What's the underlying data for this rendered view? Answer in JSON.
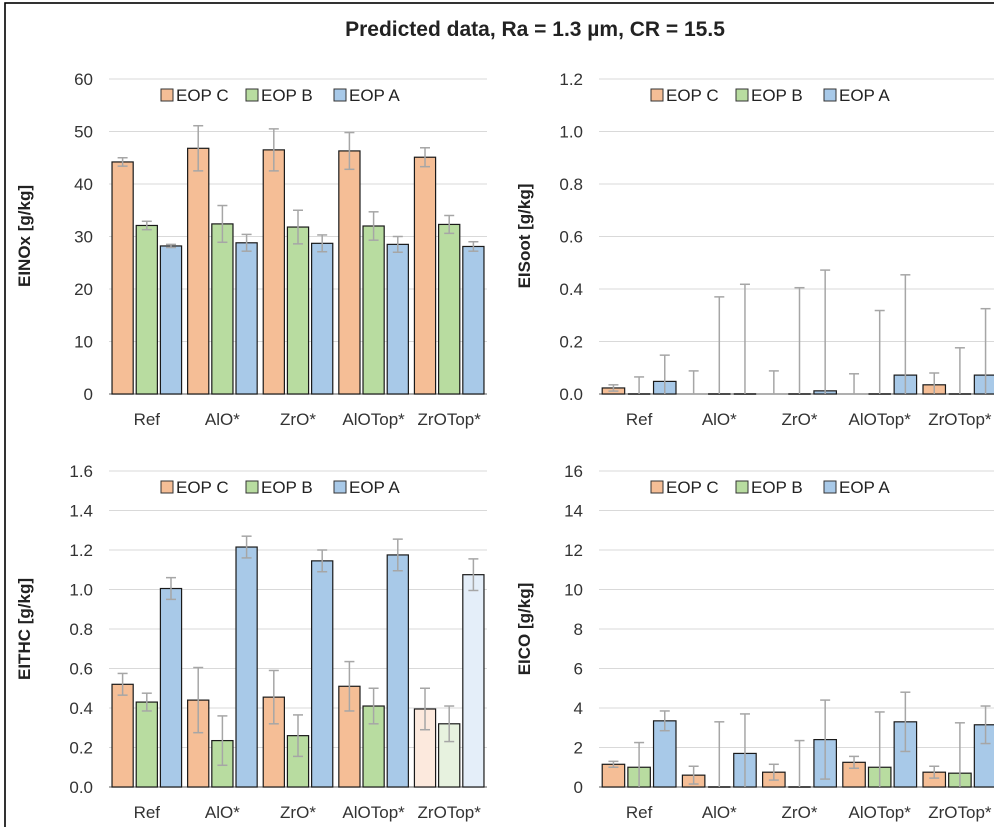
{
  "title": "Predicted data, Ra = 1.3 µm, CR = 15.5",
  "colors": {
    "EOP C": "#f5be96",
    "EOP B": "#b8dca0",
    "EOP A": "#a8c9e8",
    "EOP C faded": "#fce9dd",
    "EOP B faded": "#e7f2df",
    "EOP A faded": "#e4eef9",
    "grid": "#d9d9d9",
    "errorbar": "#a6a6a6"
  },
  "chart_data": [
    {
      "id": "nox",
      "type": "bar",
      "ylabel": "EINOx [g/kg]",
      "categories": [
        "Ref",
        "AlO*",
        "ZrO*",
        "AlOTop*",
        "ZrOTop*"
      ],
      "ylim": [
        0,
        60
      ],
      "yticks": [
        "0",
        "10",
        "20",
        "30",
        "40",
        "50",
        "60"
      ],
      "grid": true,
      "legend": "top",
      "faded_categories": [],
      "series": [
        {
          "name": "EOP C",
          "values": [
            44.2,
            46.8,
            46.5,
            46.3,
            45.1
          ],
          "err": [
            0.8,
            4.3,
            4.0,
            3.5,
            1.8
          ]
        },
        {
          "name": "EOP B",
          "values": [
            32.1,
            32.4,
            31.8,
            32.0,
            32.3
          ],
          "err": [
            0.8,
            3.5,
            3.2,
            2.7,
            1.7
          ]
        },
        {
          "name": "EOP A",
          "values": [
            28.2,
            28.8,
            28.7,
            28.5,
            28.1
          ],
          "err": [
            0.3,
            1.6,
            1.6,
            1.5,
            0.9
          ]
        }
      ]
    },
    {
      "id": "soot",
      "type": "bar",
      "ylabel": "EISoot [g/kg]",
      "categories": [
        "Ref",
        "AlO*",
        "ZrO*",
        "AlOTop*",
        "ZrOTop*"
      ],
      "ylim": [
        0,
        1.2
      ],
      "yticks": [
        "0.0",
        "0.2",
        "0.4",
        "0.6",
        "0.8",
        "1.0",
        "1.2"
      ],
      "grid": true,
      "legend": "top",
      "faded_categories": [],
      "series": [
        {
          "name": "EOP C",
          "values": [
            0.023,
            0.0,
            0.0,
            0.0,
            0.035
          ],
          "err": [
            0.012,
            0.0,
            0.0,
            0.0,
            0.045
          ]
        },
        {
          "name": "EOP B",
          "values": [
            0.0,
            0.0,
            0.0,
            0.0,
            0.0
          ],
          "err": [
            0.065,
            0.37,
            0.405,
            0.318,
            0.176
          ]
        },
        {
          "name": "EOP A",
          "values": [
            0.048,
            0.0,
            0.012,
            0.072,
            0.072
          ],
          "err": [
            0.1,
            0.418,
            0.46,
            0.382,
            0.253
          ]
        }
      ],
      "extra_whiskers": [
        {
          "series": "EOP C",
          "category": "AlO*",
          "top": 0.088
        },
        {
          "series": "EOP C",
          "category": "ZrO*",
          "top": 0.088
        },
        {
          "series": "EOP C",
          "category": "AlOTop*",
          "top": 0.077
        }
      ]
    },
    {
      "id": "thc",
      "type": "bar",
      "ylabel": "EITHC [g/kg]",
      "categories": [
        "Ref",
        "AlO*",
        "ZrO*",
        "AlOTop*",
        "ZrOTop*"
      ],
      "ylim": [
        0,
        1.6
      ],
      "yticks": [
        "0.0",
        "0.2",
        "0.4",
        "0.6",
        "0.8",
        "1.0",
        "1.2",
        "1.4",
        "1.6"
      ],
      "grid": true,
      "legend": "top",
      "faded_categories": [
        "ZrOTop*"
      ],
      "series": [
        {
          "name": "EOP C",
          "values": [
            0.52,
            0.44,
            0.455,
            0.51,
            0.395
          ],
          "err": [
            0.055,
            0.165,
            0.135,
            0.125,
            0.105
          ]
        },
        {
          "name": "EOP B",
          "values": [
            0.43,
            0.235,
            0.26,
            0.41,
            0.32
          ],
          "err": [
            0.045,
            0.125,
            0.105,
            0.09,
            0.09
          ]
        },
        {
          "name": "EOP A",
          "values": [
            1.005,
            1.215,
            1.145,
            1.175,
            1.075
          ],
          "err": [
            0.055,
            0.055,
            0.055,
            0.08,
            0.08
          ]
        }
      ]
    },
    {
      "id": "co",
      "type": "bar",
      "ylabel": "EICO [g/kg]",
      "categories": [
        "Ref",
        "AlO*",
        "ZrO*",
        "AlOTop*",
        "ZrOTop*"
      ],
      "ylim": [
        0,
        16
      ],
      "yticks": [
        "0",
        "2",
        "4",
        "6",
        "8",
        "10",
        "12",
        "14",
        "16"
      ],
      "grid": true,
      "legend": "top",
      "faded_categories": [],
      "series": [
        {
          "name": "EOP C",
          "values": [
            1.15,
            0.6,
            0.75,
            1.25,
            0.75
          ],
          "err": [
            0.15,
            0.45,
            0.4,
            0.3,
            0.3
          ]
        },
        {
          "name": "EOP B",
          "values": [
            1.0,
            0.0,
            0.0,
            1.0,
            0.7
          ],
          "err": [
            1.25,
            3.3,
            2.35,
            2.8,
            2.55
          ]
        },
        {
          "name": "EOP A",
          "values": [
            3.35,
            1.7,
            2.4,
            3.3,
            3.15
          ],
          "err": [
            0.5,
            2.0,
            2.0,
            1.5,
            0.95
          ]
        }
      ]
    }
  ]
}
